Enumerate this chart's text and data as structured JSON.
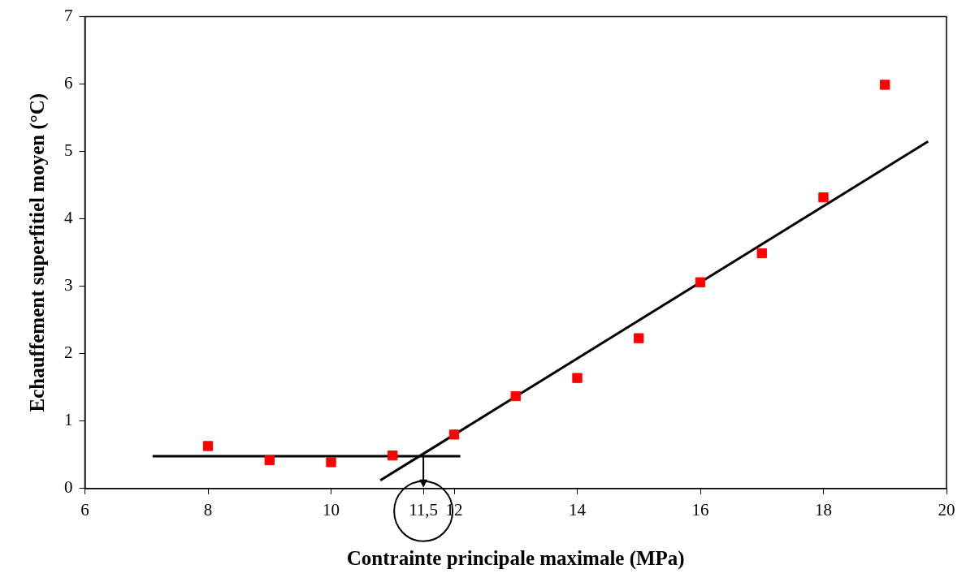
{
  "chart_data": {
    "type": "scatter",
    "xlabel": "Contrainte principale maximale (MPa)",
    "ylabel": "Echauffement superfitiel moyen (°C)",
    "xlim": [
      6,
      20
    ],
    "xticks": [
      6,
      8,
      10,
      {
        "value": 11.5,
        "label": "11,5"
      },
      12,
      14,
      16,
      18,
      20
    ],
    "ylim": [
      0,
      7
    ],
    "yticks": [
      0,
      1,
      2,
      3,
      4,
      5,
      6,
      7
    ],
    "grid": false,
    "legend": false,
    "series": [
      {
        "color": "#ff0000",
        "marker": "square",
        "x": [
          8,
          9,
          10,
          11,
          12,
          13,
          14,
          15,
          16,
          17,
          18,
          19
        ],
        "values": [
          0.63,
          0.42,
          0.39,
          0.49,
          0.8,
          1.37,
          1.64,
          2.23,
          3.06,
          3.49,
          4.32,
          5.99
        ]
      },
      {
        "type": "line",
        "marker": "none",
        "color": "#000000",
        "x": [
          7.1,
          12.1
        ],
        "values": [
          0.48,
          0.48
        ]
      },
      {
        "type": "line",
        "marker": "none",
        "color": "#000000",
        "x": [
          10.8,
          19.7
        ],
        "values": [
          0.12,
          5.15
        ]
      }
    ]
  }
}
